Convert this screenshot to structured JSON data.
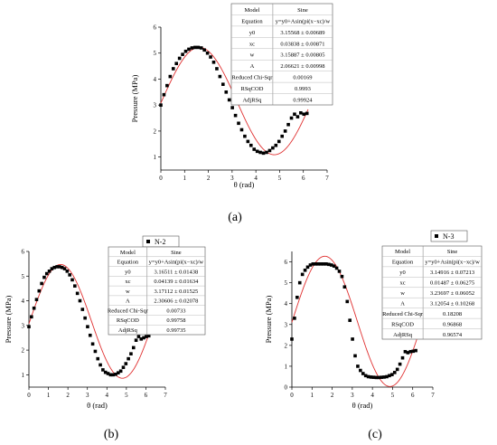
{
  "chart_data": [
    {
      "type": "scatter",
      "panel_label": "(a)",
      "legend": "",
      "xlabel": "θ (rad)",
      "ylabel": "Pressure (MPa)",
      "xlim": [
        0,
        7
      ],
      "ylim": [
        0.5,
        6
      ],
      "xticks": [
        "0",
        "1",
        "2",
        "3",
        "4",
        "5",
        "6",
        "7"
      ],
      "yticks": [
        "1",
        "2",
        "3",
        "4",
        "5",
        "6"
      ],
      "fit": {
        "y0": 3.15568,
        "xc": 0.03838,
        "w": 3.15887,
        "A": 2.06621
      },
      "fit_table": [
        [
          "Model",
          "Sine"
        ],
        [
          "Equation",
          "y=y0+Asin(pi(x−xc)/w"
        ],
        [
          "y0",
          "3.15568 ± 0.00689"
        ],
        [
          "xc",
          "0.03838 ± 0.00871"
        ],
        [
          "w",
          "3.15887 ± 0.00805"
        ],
        [
          "A",
          "2.06621 ± 0.00998"
        ],
        [
          "Reduced Chi-Sqr",
          "0.00169"
        ],
        [
          "RSqCOD",
          "0.9993"
        ],
        [
          "AdjRSq",
          "0.99924"
        ]
      ],
      "x": [
        0,
        0.1309,
        0.2618,
        0.3927,
        0.5236,
        0.6545,
        0.7854,
        0.9163,
        1.0472,
        1.1781,
        1.309,
        1.4399,
        1.5708,
        1.7017,
        1.8326,
        1.9635,
        2.0944,
        2.2253,
        2.3562,
        2.4871,
        2.618,
        2.7489,
        2.8798,
        3.0107,
        3.1416,
        3.2725,
        3.4034,
        3.5343,
        3.6652,
        3.7961,
        3.927,
        4.0579,
        4.1888,
        4.3197,
        4.4506,
        4.5815,
        4.7124,
        4.8433,
        4.9742,
        5.1051,
        5.236,
        5.3669,
        5.4978,
        5.6287,
        5.7596,
        5.8905,
        6.0214,
        6.1523
      ],
      "y": [
        3.0,
        3.4,
        3.75,
        4.1,
        4.4,
        4.6,
        4.8,
        4.95,
        5.07,
        5.15,
        5.2,
        5.22,
        5.22,
        5.2,
        5.12,
        5.0,
        4.85,
        4.65,
        4.4,
        4.1,
        3.8,
        3.5,
        3.2,
        2.9,
        2.6,
        2.3,
        2.05,
        1.8,
        1.6,
        1.45,
        1.3,
        1.22,
        1.18,
        1.15,
        1.18,
        1.25,
        1.35,
        1.45,
        1.6,
        1.8,
        2.0,
        2.25,
        2.5,
        2.65,
        2.55,
        2.7,
        2.65,
        2.68
      ]
    },
    {
      "type": "scatter",
      "panel_label": "(b)",
      "legend": "N-2",
      "xlabel": "θ (rad)",
      "ylabel": "Pressure (MPa)",
      "xlim": [
        0,
        7
      ],
      "ylim": [
        0.5,
        6
      ],
      "xticks": [
        "0",
        "1",
        "2",
        "3",
        "4",
        "5",
        "6",
        "7"
      ],
      "yticks": [
        "1",
        "2",
        "3",
        "4",
        "5",
        "6"
      ],
      "fit": {
        "y0": 3.16511,
        "xc": 0.04139,
        "w": 3.17112,
        "A": 2.30606
      },
      "fit_table": [
        [
          "Model",
          "Sine"
        ],
        [
          "Equation",
          "y=y0+Asin(pi(x−xc)/w"
        ],
        [
          "y0",
          "3.16511 ± 0.01438"
        ],
        [
          "xc",
          "0.04139 ± 0.01634"
        ],
        [
          "w",
          "3.17112 ± 0.01525"
        ],
        [
          "A",
          "2.30606 ± 0.02078"
        ],
        [
          "Reduced Chi-Sqr",
          "0.00733"
        ],
        [
          "RSqCOD",
          "0.99758"
        ],
        [
          "AdjRSq",
          "0.99735"
        ]
      ],
      "x": [
        0,
        0.1309,
        0.2618,
        0.3927,
        0.5236,
        0.6545,
        0.7854,
        0.9163,
        1.0472,
        1.1781,
        1.309,
        1.4399,
        1.5708,
        1.7017,
        1.8326,
        1.9635,
        2.0944,
        2.2253,
        2.3562,
        2.4871,
        2.618,
        2.7489,
        2.8798,
        3.0107,
        3.1416,
        3.2725,
        3.4034,
        3.5343,
        3.6652,
        3.7961,
        3.927,
        4.0579,
        4.1888,
        4.3197,
        4.4506,
        4.5815,
        4.7124,
        4.8433,
        4.9742,
        5.1051,
        5.236,
        5.3669,
        5.4978,
        5.6287,
        5.7596,
        5.8905,
        6.0214,
        6.1523
      ],
      "y": [
        2.95,
        3.35,
        3.7,
        4.05,
        4.4,
        4.7,
        4.95,
        5.1,
        5.2,
        5.3,
        5.35,
        5.38,
        5.38,
        5.35,
        5.3,
        5.2,
        5.05,
        4.85,
        4.6,
        4.3,
        4.0,
        3.65,
        3.3,
        2.95,
        2.6,
        2.25,
        1.95,
        1.65,
        1.4,
        1.2,
        1.1,
        1.05,
        1.0,
        1.0,
        1.02,
        1.08,
        1.15,
        1.3,
        1.45,
        1.65,
        1.85,
        2.1,
        2.4,
        2.55,
        2.45,
        2.5,
        2.55,
        2.58
      ]
    },
    {
      "type": "scatter",
      "panel_label": "(c)",
      "legend": "N-3",
      "xlabel": "θ (rad)",
      "ylabel": "Pressure (MPa)",
      "xlim": [
        0,
        7
      ],
      "ylim": [
        0,
        6.5
      ],
      "xticks": [
        "0",
        "1",
        "2",
        "3",
        "4",
        "5",
        "6",
        "7"
      ],
      "yticks": [
        "0",
        "1",
        "2",
        "3",
        "4",
        "5",
        "6"
      ],
      "fit": {
        "y0": 3.14916,
        "xc": 0.01487,
        "w": 3.23697,
        "A": 3.12054
      },
      "fit_table": [
        [
          "Model",
          "Sine"
        ],
        [
          "Equation",
          "y=y0+Asin(pi(x−xc)/w"
        ],
        [
          "y0",
          "3.14916 ± 0.07213"
        ],
        [
          "xc",
          "0.01487 ± 0.06275"
        ],
        [
          "w",
          "3.23697 ± 0.06052"
        ],
        [
          "A",
          "3.12054 ± 0.10268"
        ],
        [
          "Reduced Chi-Sqr",
          "0.18208"
        ],
        [
          "RSqCOD",
          "0.96868"
        ],
        [
          "AdjRSq",
          "0.96574"
        ]
      ],
      "x": [
        0,
        0.1309,
        0.2618,
        0.3927,
        0.5236,
        0.6545,
        0.7854,
        0.9163,
        1.0472,
        1.1781,
        1.309,
        1.4399,
        1.5708,
        1.7017,
        1.8326,
        1.9635,
        2.0944,
        2.2253,
        2.3562,
        2.4871,
        2.618,
        2.7489,
        2.8798,
        3.0107,
        3.1416,
        3.2725,
        3.4034,
        3.5343,
        3.6652,
        3.7961,
        3.927,
        4.0579,
        4.1888,
        4.3197,
        4.4506,
        4.5815,
        4.7124,
        4.8433,
        4.9742,
        5.1051,
        5.236,
        5.3669,
        5.4978,
        5.6287,
        5.7596,
        5.8905,
        6.0214,
        6.1523
      ],
      "y": [
        2.3,
        3.3,
        4.3,
        5.0,
        5.4,
        5.6,
        5.75,
        5.85,
        5.9,
        5.9,
        5.9,
        5.9,
        5.9,
        5.9,
        5.88,
        5.85,
        5.8,
        5.7,
        5.55,
        5.3,
        4.8,
        4.1,
        3.2,
        2.3,
        1.5,
        1.0,
        0.8,
        0.65,
        0.55,
        0.5,
        0.48,
        0.47,
        0.46,
        0.46,
        0.47,
        0.48,
        0.5,
        0.55,
        0.6,
        0.7,
        0.85,
        1.1,
        1.4,
        1.7,
        1.65,
        1.7,
        1.72,
        1.75
      ]
    }
  ]
}
